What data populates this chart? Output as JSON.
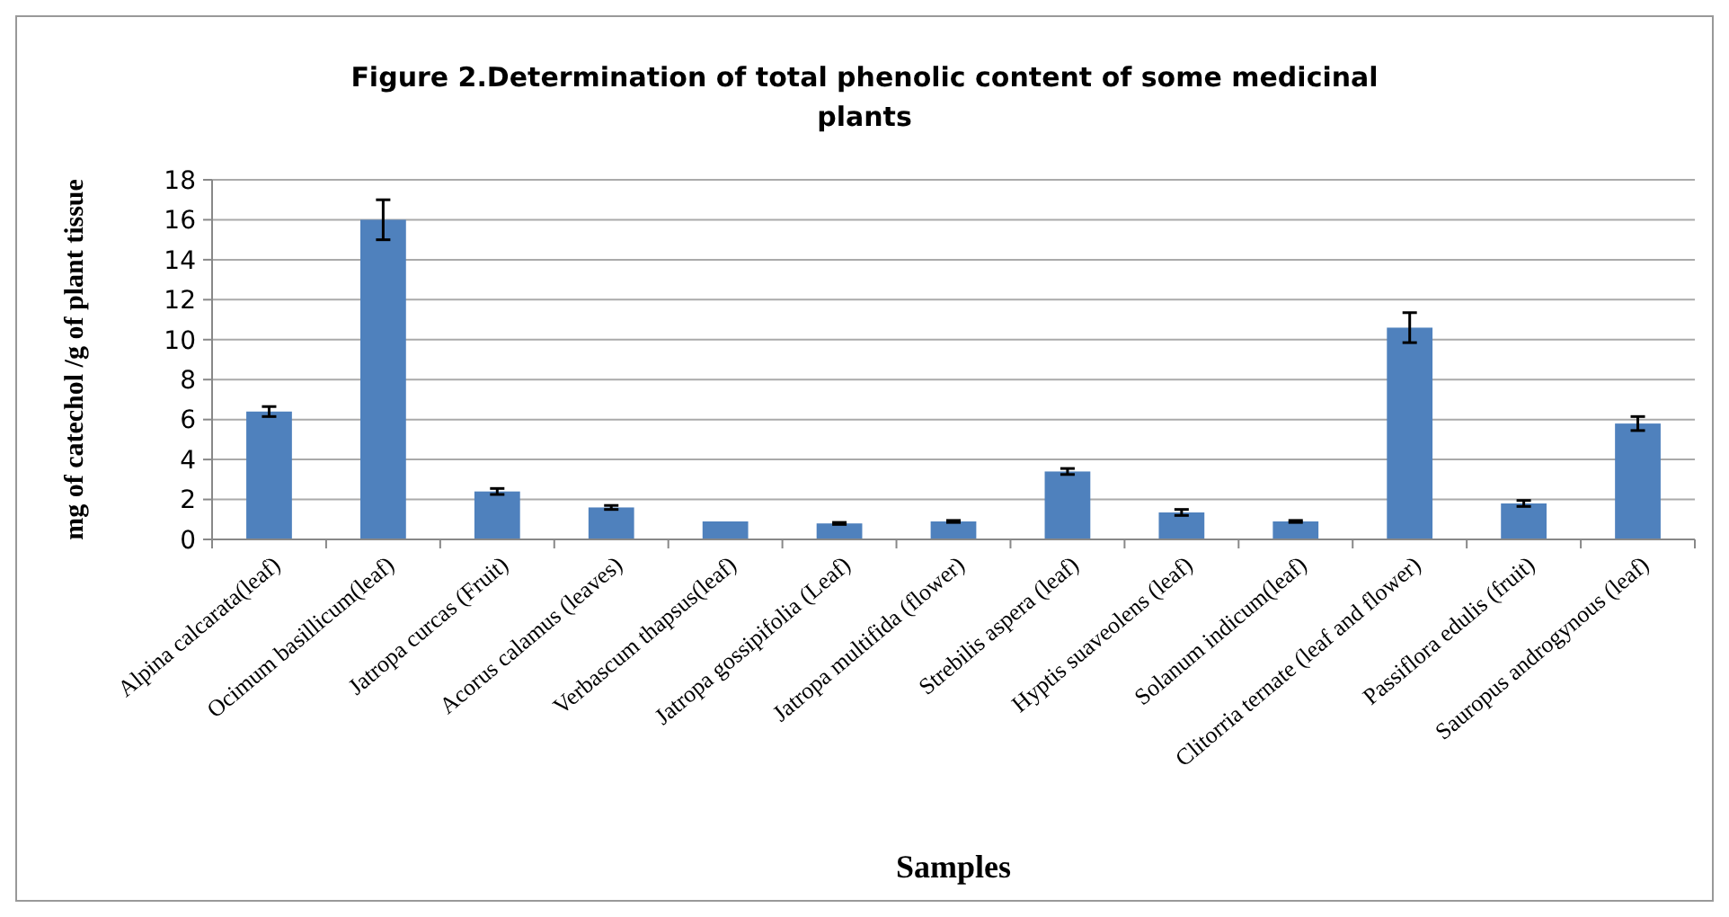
{
  "chart_data": {
    "type": "bar",
    "title": "Figure 2.Determination of total phenolic content of some medicinal plants",
    "xlabel": "Samples",
    "ylabel": "mg of catechol /g of plant tissue",
    "categories": [
      "Alpina calcarata(leaf)",
      "Ocimum basillicum(leaf)",
      "Jatropa curcas (Fruit)",
      "Acorus calamus (leaves)",
      "Verbascum thapsus(leaf)",
      "Jatropa gossipifolia (Leaf)",
      "Jatropa multifida (flower)",
      "Strebilis aspera (leaf)",
      "Hyptis suaveolens (leaf)",
      "Solanum indicum(leaf)",
      "Clitorria ternate (leaf and flower)",
      "Passiflora edulis (fruit)",
      "Sauropus androgynous (leaf)"
    ],
    "values": [
      6.4,
      16.0,
      2.4,
      1.6,
      0.9,
      0.8,
      0.9,
      3.4,
      1.35,
      0.9,
      10.6,
      1.8,
      5.8
    ],
    "errors": [
      0.25,
      1.0,
      0.15,
      0.1,
      null,
      0.05,
      0.05,
      0.15,
      0.15,
      0.05,
      0.75,
      0.15,
      0.35
    ],
    "color": "#4f81bd",
    "ylim": [
      0,
      18
    ],
    "yticks": [
      0,
      2,
      4,
      6,
      8,
      10,
      12,
      14,
      16,
      18
    ],
    "grid": "y"
  }
}
